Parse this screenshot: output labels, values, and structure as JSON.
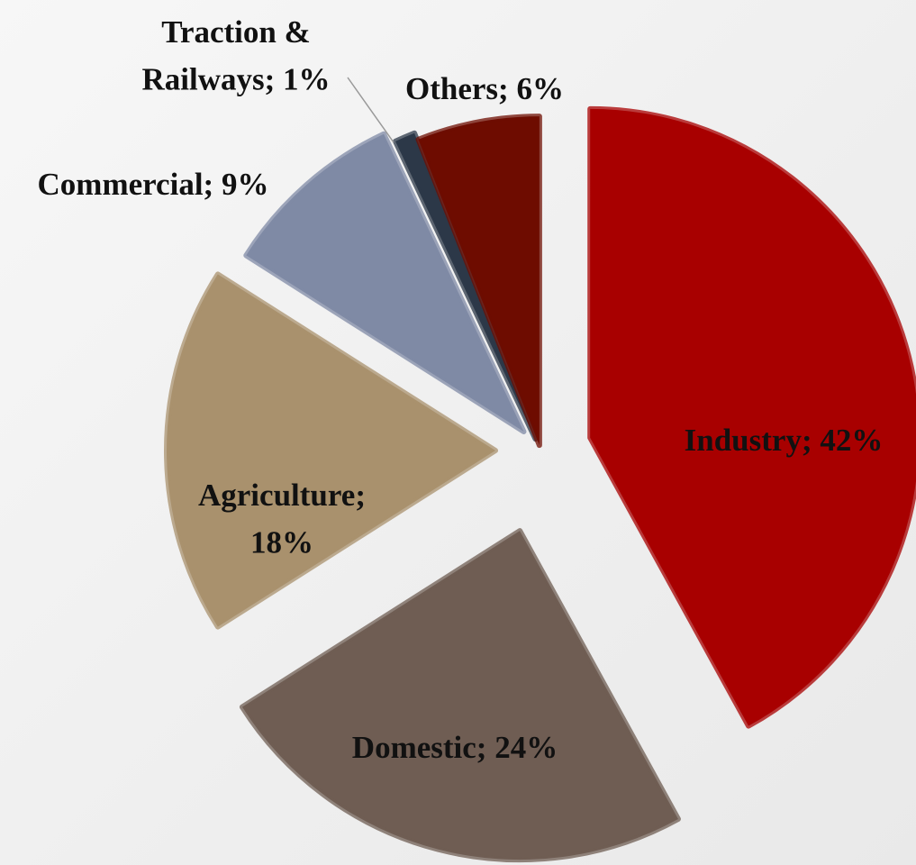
{
  "chart_data": {
    "type": "pie",
    "labels": [
      "Industry; 42%",
      "Domestic; 24%",
      "Agriculture; 18%",
      "Commercial; 9%",
      "Traction & Railways; 1%",
      "Others; 6%"
    ],
    "values": [
      42,
      24,
      18,
      9,
      1,
      6
    ],
    "colors": [
      "#a80000",
      "#6f5d53",
      "#a9916d",
      "#7f8aa5",
      "#2c3848",
      "#6e0c00"
    ]
  }
}
